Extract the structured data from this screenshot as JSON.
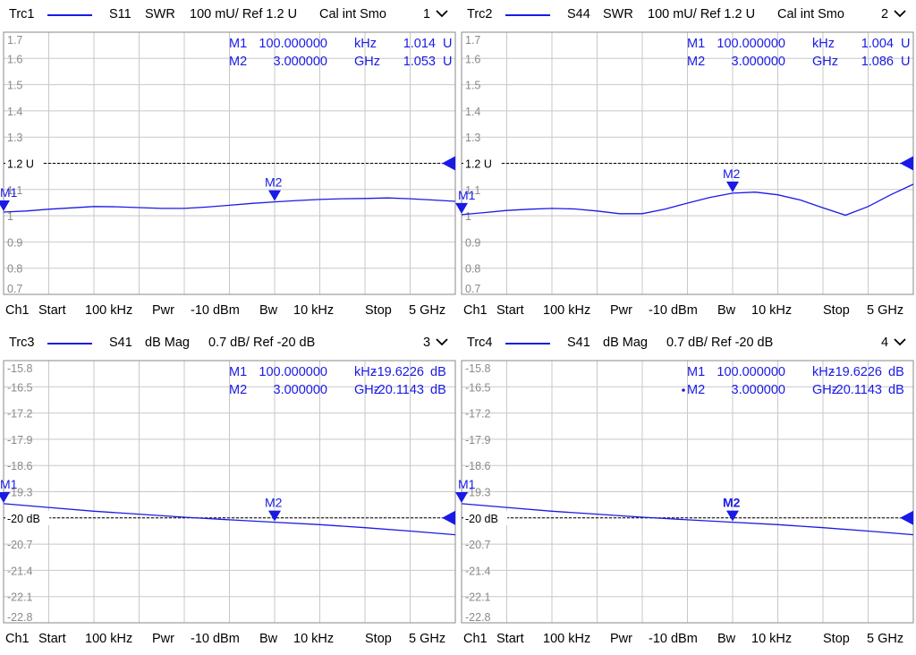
{
  "colors": {
    "trace": "#1a1ae6",
    "grid": "#c8c8c8",
    "frame": "#8a8a8a",
    "label": "#8a8a8a"
  },
  "panels": [
    {
      "trc": "Trc1",
      "param": "S11",
      "format": "SWR",
      "scale": "100 mU/ Ref 1.2 U",
      "extra": "Cal int Smo",
      "num": "1",
      "footer": {
        "ch": "Ch1",
        "start_lbl": "Start",
        "start_val": "100 kHz",
        "pwr_lbl": "Pwr",
        "pwr_val": "-10 dBm",
        "bw_lbl": "Bw",
        "bw_val": "10 kHz",
        "stop_lbl": "Stop",
        "stop_val": "5 GHz"
      },
      "markers": [
        {
          "name": "M1",
          "value": "100.000000",
          "unit": "kHz",
          "reading": "1.014",
          "runit": "U",
          "active": false
        },
        {
          "name": "M2",
          "value": "3.000000",
          "unit": "GHz",
          "reading": "1.053",
          "runit": "U",
          "active": false
        }
      ],
      "ref_label": "1.2 U"
    },
    {
      "trc": "Trc2",
      "param": "S44",
      "format": "SWR",
      "scale": "100 mU/ Ref 1.2 U",
      "extra": "Cal int Smo",
      "num": "2",
      "footer": {
        "ch": "Ch1",
        "start_lbl": "Start",
        "start_val": "100 kHz",
        "pwr_lbl": "Pwr",
        "pwr_val": "-10 dBm",
        "bw_lbl": "Bw",
        "bw_val": "10 kHz",
        "stop_lbl": "Stop",
        "stop_val": "5 GHz"
      },
      "markers": [
        {
          "name": "M1",
          "value": "100.000000",
          "unit": "kHz",
          "reading": "1.004",
          "runit": "U",
          "active": false
        },
        {
          "name": "M2",
          "value": "3.000000",
          "unit": "GHz",
          "reading": "1.086",
          "runit": "U",
          "active": false
        }
      ],
      "ref_label": "1.2 U"
    },
    {
      "trc": "Trc3",
      "param": "S41",
      "format": "dB Mag",
      "scale": "0.7 dB/ Ref -20 dB",
      "extra": "",
      "num": "3",
      "footer": {
        "ch": "Ch1",
        "start_lbl": "Start",
        "start_val": "100 kHz",
        "pwr_lbl": "Pwr",
        "pwr_val": "-10 dBm",
        "bw_lbl": "Bw",
        "bw_val": "10 kHz",
        "stop_lbl": "Stop",
        "stop_val": "5 GHz"
      },
      "markers": [
        {
          "name": "M1",
          "value": "100.000000",
          "unit": "kHz",
          "reading": "-19.6226",
          "runit": "dB",
          "active": false
        },
        {
          "name": "M2",
          "value": "3.000000",
          "unit": "GHz",
          "reading": "-20.1143",
          "runit": "dB",
          "active": false
        }
      ],
      "ref_label": "-20 dB"
    },
    {
      "trc": "Trc4",
      "param": "S41",
      "format": "dB Mag",
      "scale": "0.7 dB/ Ref -20 dB",
      "extra": "",
      "num": "4",
      "footer": {
        "ch": "Ch1",
        "start_lbl": "Start",
        "start_val": "100 kHz",
        "pwr_lbl": "Pwr",
        "pwr_val": "-10 dBm",
        "bw_lbl": "Bw",
        "bw_val": "10 kHz",
        "stop_lbl": "Stop",
        "stop_val": "5 GHz"
      },
      "markers": [
        {
          "name": "M1",
          "value": "100.000000",
          "unit": "kHz",
          "reading": "-19.6226",
          "runit": "dB",
          "active": false
        },
        {
          "name": "M2",
          "value": "3.000000",
          "unit": "GHz",
          "reading": "-20.1143",
          "runit": "dB",
          "active": true
        }
      ],
      "ref_label": "-20 dB"
    }
  ],
  "chart_data": [
    {
      "type": "line",
      "title": "Trc1 S11 SWR",
      "ylim": [
        0.7,
        1.7
      ],
      "xlim": [
        0.0001,
        5
      ],
      "x_unit": "GHz",
      "ytick_labels": [
        "1.7",
        "1.6",
        "1.5",
        "1.4",
        "1.3",
        "1.2 U",
        "1.1",
        "1",
        "0.9",
        "0.8",
        "0.7"
      ],
      "ref": 1.2,
      "grid": true,
      "series": [
        {
          "x": [
            0.0001,
            0.25,
            0.5,
            0.75,
            1.0,
            1.25,
            1.5,
            1.75,
            2.0,
            2.25,
            2.5,
            2.75,
            3.0,
            3.25,
            3.5,
            3.75,
            4.0,
            4.25,
            4.5,
            4.75,
            5.0
          ],
          "values": [
            1.014,
            1.018,
            1.025,
            1.03,
            1.035,
            1.034,
            1.031,
            1.028,
            1.028,
            1.033,
            1.04,
            1.047,
            1.053,
            1.058,
            1.062,
            1.065,
            1.066,
            1.068,
            1.065,
            1.06,
            1.055
          ]
        }
      ],
      "markers": [
        {
          "name": "M1",
          "x": 0.0001,
          "y": 1.014
        },
        {
          "name": "M2",
          "x": 3.0,
          "y": 1.053
        }
      ]
    },
    {
      "type": "line",
      "title": "Trc2 S44 SWR",
      "ylim": [
        0.7,
        1.7
      ],
      "xlim": [
        0.0001,
        5
      ],
      "x_unit": "GHz",
      "ytick_labels": [
        "1.7",
        "1.6",
        "1.5",
        "1.4",
        "1.3",
        "1.2 U",
        "1.1",
        "1",
        "0.9",
        "0.8",
        "0.7"
      ],
      "ref": 1.2,
      "grid": true,
      "series": [
        {
          "x": [
            0.0001,
            0.25,
            0.5,
            0.75,
            1.0,
            1.25,
            1.5,
            1.75,
            2.0,
            2.25,
            2.5,
            2.75,
            3.0,
            3.25,
            3.5,
            3.75,
            4.0,
            4.25,
            4.5,
            4.75,
            5.0
          ],
          "values": [
            1.004,
            1.012,
            1.02,
            1.025,
            1.028,
            1.026,
            1.018,
            1.008,
            1.008,
            1.025,
            1.048,
            1.07,
            1.086,
            1.09,
            1.08,
            1.06,
            1.03,
            1.002,
            1.035,
            1.08,
            1.12
          ]
        }
      ],
      "markers": [
        {
          "name": "M1",
          "x": 0.0001,
          "y": 1.004
        },
        {
          "name": "M2",
          "x": 3.0,
          "y": 1.086
        }
      ]
    },
    {
      "type": "line",
      "title": "Trc3 S41 dB Mag",
      "ylim": [
        -22.8,
        -15.8
      ],
      "xlim": [
        0.0001,
        5
      ],
      "x_unit": "GHz",
      "ytick_labels": [
        "-15.8",
        "-16.5",
        "-17.2",
        "-17.9",
        "-18.6",
        "-19.3",
        "-20 dB",
        "-20.7",
        "-21.4",
        "-22.1",
        "-22.8"
      ],
      "ref": -20,
      "grid": true,
      "series": [
        {
          "x": [
            0.0001,
            0.5,
            1.0,
            1.5,
            2.0,
            2.5,
            3.0,
            3.5,
            4.0,
            4.5,
            5.0
          ],
          "values": [
            -19.62,
            -19.72,
            -19.82,
            -19.9,
            -19.98,
            -20.05,
            -20.114,
            -20.18,
            -20.26,
            -20.35,
            -20.45
          ]
        }
      ],
      "markers": [
        {
          "name": "M1",
          "x": 0.0001,
          "y": -19.6226
        },
        {
          "name": "M2",
          "x": 3.0,
          "y": -20.1143
        }
      ]
    },
    {
      "type": "line",
      "title": "Trc4 S41 dB Mag",
      "ylim": [
        -22.8,
        -15.8
      ],
      "xlim": [
        0.0001,
        5
      ],
      "x_unit": "GHz",
      "ytick_labels": [
        "-15.8",
        "-16.5",
        "-17.2",
        "-17.9",
        "-18.6",
        "-19.3",
        "-20 dB",
        "-20.7",
        "-21.4",
        "-22.1",
        "-22.8"
      ],
      "ref": -20,
      "grid": true,
      "series": [
        {
          "x": [
            0.0001,
            0.5,
            1.0,
            1.5,
            2.0,
            2.5,
            3.0,
            3.5,
            4.0,
            4.5,
            5.0
          ],
          "values": [
            -19.62,
            -19.72,
            -19.82,
            -19.9,
            -19.98,
            -20.05,
            -20.114,
            -20.18,
            -20.26,
            -20.35,
            -20.45
          ]
        }
      ],
      "markers": [
        {
          "name": "M1",
          "x": 0.0001,
          "y": -19.6226
        },
        {
          "name": "M2",
          "x": 3.0,
          "y": -20.1143
        }
      ]
    }
  ]
}
